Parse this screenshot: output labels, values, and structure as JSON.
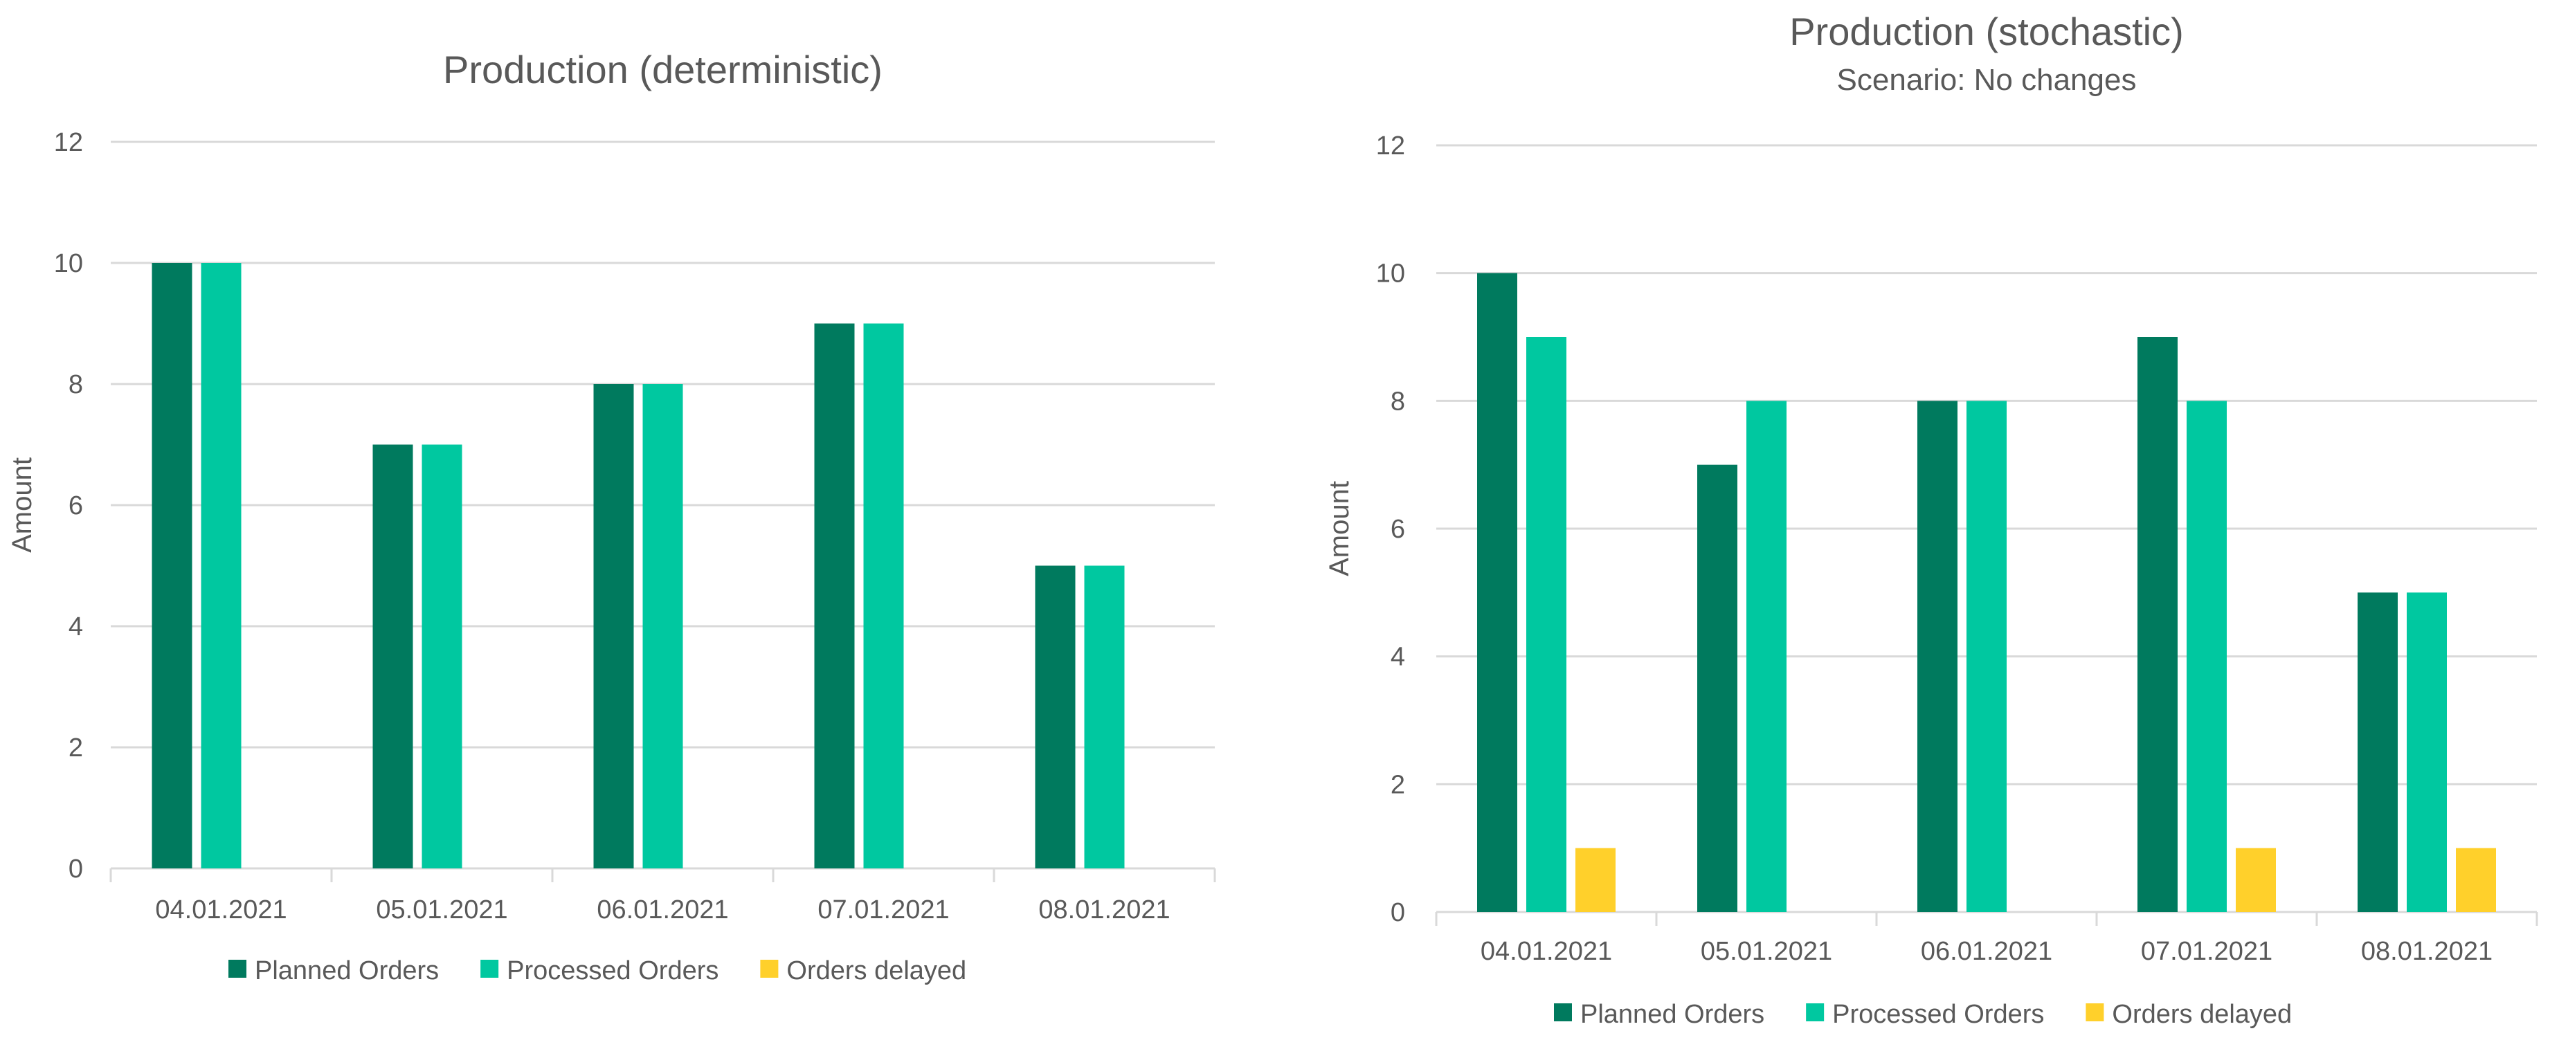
{
  "chart_data": [
    {
      "type": "bar",
      "title": "Production (deterministic)",
      "subtitle": "",
      "xlabel": "",
      "ylabel": "Amount",
      "ylim": [
        0,
        12
      ],
      "yticks": [
        0,
        2,
        4,
        6,
        8,
        10,
        12
      ],
      "grid": true,
      "legend_position": "bottom",
      "categories": [
        "04.01.2021",
        "05.01.2021",
        "06.01.2021",
        "07.01.2021",
        "08.01.2021"
      ],
      "series": [
        {
          "name": "Planned Orders",
          "color": "#007A5E",
          "values": [
            10,
            7,
            8,
            9,
            5
          ]
        },
        {
          "name": "Processed Orders",
          "color": "#00C8A0",
          "values": [
            10,
            7,
            8,
            9,
            5
          ]
        },
        {
          "name": "Orders delayed",
          "color": "#FFD02B",
          "values": [
            0,
            0,
            0,
            0,
            0
          ]
        }
      ]
    },
    {
      "type": "bar",
      "title": "Production (stochastic)",
      "subtitle": "Scenario: No changes",
      "xlabel": "",
      "ylabel": "Amount",
      "ylim": [
        0,
        12
      ],
      "yticks": [
        0,
        2,
        4,
        6,
        8,
        10,
        12
      ],
      "grid": true,
      "legend_position": "bottom",
      "categories": [
        "04.01.2021",
        "05.01.2021",
        "06.01.2021",
        "07.01.2021",
        "08.01.2021"
      ],
      "series": [
        {
          "name": "Planned Orders",
          "color": "#007A5E",
          "values": [
            10,
            7,
            8,
            9,
            5
          ]
        },
        {
          "name": "Processed Orders",
          "color": "#00C8A0",
          "values": [
            9,
            8,
            8,
            8,
            5
          ]
        },
        {
          "name": "Orders delayed",
          "color": "#FFD02B",
          "values": [
            1,
            0,
            0,
            1,
            1
          ]
        }
      ]
    }
  ]
}
